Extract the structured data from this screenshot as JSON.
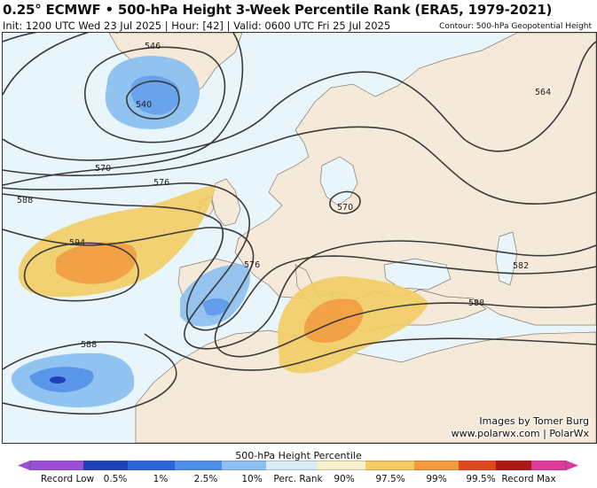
{
  "header": {
    "title": "0.25° ECMWF • 500-hPa Height 3-Week Percentile Rank (ERA5, 1979-2021)",
    "subtitle": "Init: 1200 UTC Wed 23 Jul 2025 | Hour: [42] | Valid: 0600 UTC Fri 25 Jul 2025",
    "contour_note": "Contour: 500-hPa Geopotential Height"
  },
  "map": {
    "contour_labels": [
      "546",
      "540",
      "564",
      "570",
      "576",
      "588",
      "594",
      "570",
      "576",
      "582",
      "588",
      "588"
    ],
    "colors": {
      "ocean": "#e8f5fb",
      "land": "#f5ead9",
      "border": "#8a7a6a",
      "contour": "#3a3a3a"
    }
  },
  "credits": {
    "line1": "Images by Tomer Burg",
    "line2": "www.polarwx.com | PolarWx"
  },
  "colorbar": {
    "title": "500-hPa Height Percentile",
    "labels": [
      "Record Low",
      "0.5%",
      "1%",
      "2.5%",
      "10%",
      "Perc. Rank",
      "90%",
      "97.5%",
      "99%",
      "99.5%",
      "Record Max"
    ],
    "colors": [
      "#9b4fd6",
      "#1f3fb8",
      "#2d63d8",
      "#4f8ee8",
      "#8cc0f0",
      "#d8ecf8",
      "#f6f0cf",
      "#f3cd63",
      "#f29a3e",
      "#e2471f",
      "#b01515",
      "#e0399b"
    ]
  }
}
